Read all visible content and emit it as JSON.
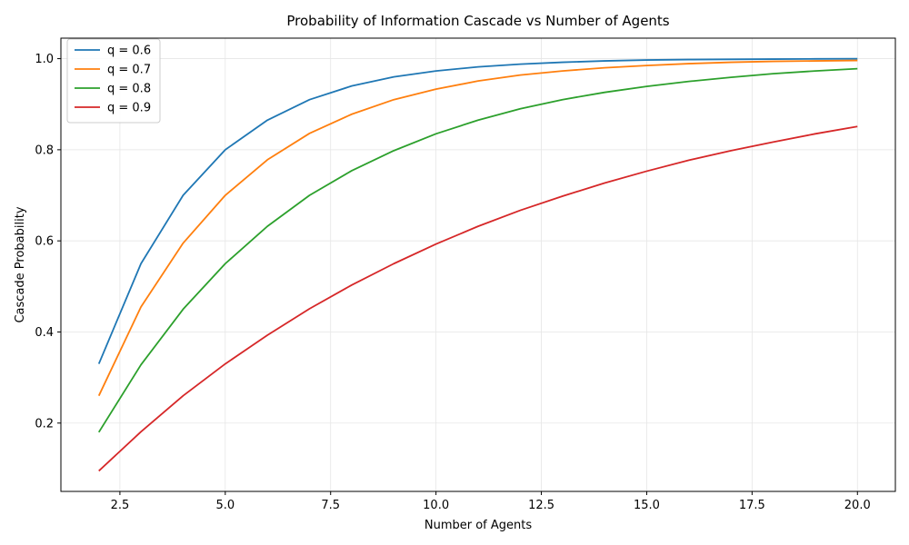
{
  "chart_data": {
    "type": "line",
    "title": "Probability of Information Cascade vs Number of Agents",
    "xlabel": "Number of Agents",
    "ylabel": "Cascade Probability",
    "xlim": [
      1.1,
      20.9
    ],
    "ylim": [
      0.05,
      1.045
    ],
    "xticks": [
      2.5,
      5.0,
      7.5,
      10.0,
      12.5,
      15.0,
      17.5,
      20.0
    ],
    "xtick_labels": [
      "2.5",
      "5.0",
      "7.5",
      "10.0",
      "12.5",
      "15.0",
      "17.5",
      "20.0"
    ],
    "yticks": [
      0.2,
      0.4,
      0.6,
      0.8,
      1.0
    ],
    "ytick_labels": [
      "0.2",
      "0.4",
      "0.6",
      "0.8",
      "1.0"
    ],
    "grid": true,
    "legend_position": "upper-left",
    "x": [
      2,
      3,
      4,
      5,
      6,
      7,
      8,
      9,
      10,
      11,
      12,
      13,
      14,
      15,
      16,
      17,
      18,
      19,
      20
    ],
    "series": [
      {
        "name": "q = 0.6",
        "color": "#1f77b4",
        "values": [
          0.33,
          0.55,
          0.7,
          0.8,
          0.865,
          0.91,
          0.94,
          0.96,
          0.973,
          0.982,
          0.988,
          0.992,
          0.995,
          0.997,
          0.998,
          0.9985,
          0.999,
          0.9995,
          0.9998
        ]
      },
      {
        "name": "q = 0.7",
        "color": "#ff7f0e",
        "values": [
          0.26,
          0.455,
          0.595,
          0.7,
          0.778,
          0.836,
          0.878,
          0.91,
          0.933,
          0.951,
          0.964,
          0.973,
          0.98,
          0.985,
          0.989,
          0.992,
          0.994,
          0.995,
          0.996
        ]
      },
      {
        "name": "q = 0.8",
        "color": "#2ca02c",
        "values": [
          0.18,
          0.328,
          0.45,
          0.55,
          0.632,
          0.7,
          0.754,
          0.798,
          0.835,
          0.865,
          0.89,
          0.91,
          0.926,
          0.939,
          0.95,
          0.959,
          0.967,
          0.973,
          0.978
        ]
      },
      {
        "name": "q = 0.9",
        "color": "#d62728",
        "values": [
          0.095,
          0.181,
          0.26,
          0.33,
          0.393,
          0.451,
          0.503,
          0.55,
          0.593,
          0.632,
          0.667,
          0.698,
          0.727,
          0.753,
          0.777,
          0.798,
          0.817,
          0.835,
          0.851
        ]
      }
    ]
  }
}
